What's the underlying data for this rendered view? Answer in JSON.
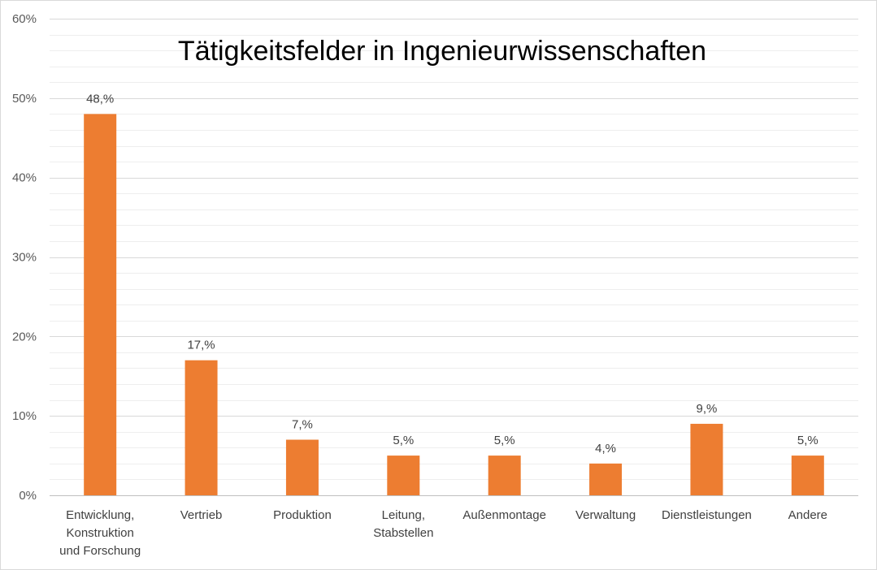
{
  "chart_data": {
    "type": "bar",
    "title": "Tätigkeitsfelder in Ingenieurwissenschaften",
    "xlabel": "",
    "ylabel": "",
    "categories": [
      [
        "Entwicklung,",
        "Konstruktion",
        "und Forschung"
      ],
      [
        "Vertrieb"
      ],
      [
        "Produktion"
      ],
      [
        "Leitung,",
        "Stabstellen"
      ],
      [
        "Außenmontage"
      ],
      [
        "Verwaltung"
      ],
      [
        "Dienstleistungen"
      ],
      [
        "Andere"
      ]
    ],
    "values": [
      48,
      17,
      7,
      5,
      5,
      4,
      9,
      5
    ],
    "data_labels": [
      "48,%",
      "17,%",
      "7,%",
      "5,%",
      "5,%",
      "4,%",
      "9,%",
      "5,%"
    ],
    "ylim": [
      0,
      60
    ],
    "y_ticks": [
      0,
      10,
      20,
      30,
      40,
      50,
      60
    ],
    "y_tick_labels": [
      "0%",
      "10%",
      "20%",
      "30%",
      "40%",
      "50%",
      "60%"
    ],
    "grid": true,
    "legend": "none",
    "colors": {
      "bar": "#ED7D31",
      "major_grid": "#D9D9D9",
      "minor_grid": "#EEEEEE",
      "axis": "#BFBFBF"
    }
  }
}
